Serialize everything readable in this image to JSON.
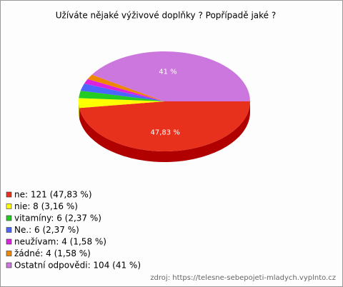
{
  "chart_data": {
    "type": "pie",
    "title": "Užíváte nějaké výživové doplňky ? Popřípadě jaké ?",
    "categories": [
      "ne: 121 (47,83 %)",
      "nie: 8 (3,16 %)",
      "vitamíny: 6 (2,37 %)",
      "Ne.: 6 (2,37 %)",
      "neužívam: 4 (1,58 %)",
      "žádné: 4 (1,58 %)",
      "Ostatní odpovědi: 104 (41 %)"
    ],
    "values": [
      47.83,
      3.16,
      2.37,
      2.37,
      1.58,
      1.58,
      41
    ],
    "value_labels": [
      "47,83 %",
      null,
      null,
      null,
      null,
      null,
      "41 %"
    ],
    "colors": [
      "#e8311c",
      "#ffff00",
      "#22cc22",
      "#4a66ff",
      "#dd22dd",
      "#ee8800",
      "#cc77dd"
    ],
    "side_colors": [
      "#b00000",
      "#b8b800",
      "#119911",
      "#2233bb",
      "#991199",
      "#aa5500",
      "#884499"
    ],
    "source": "zdroj: https://telesne-sebepojeti-mladych.vyplnto.cz"
  }
}
